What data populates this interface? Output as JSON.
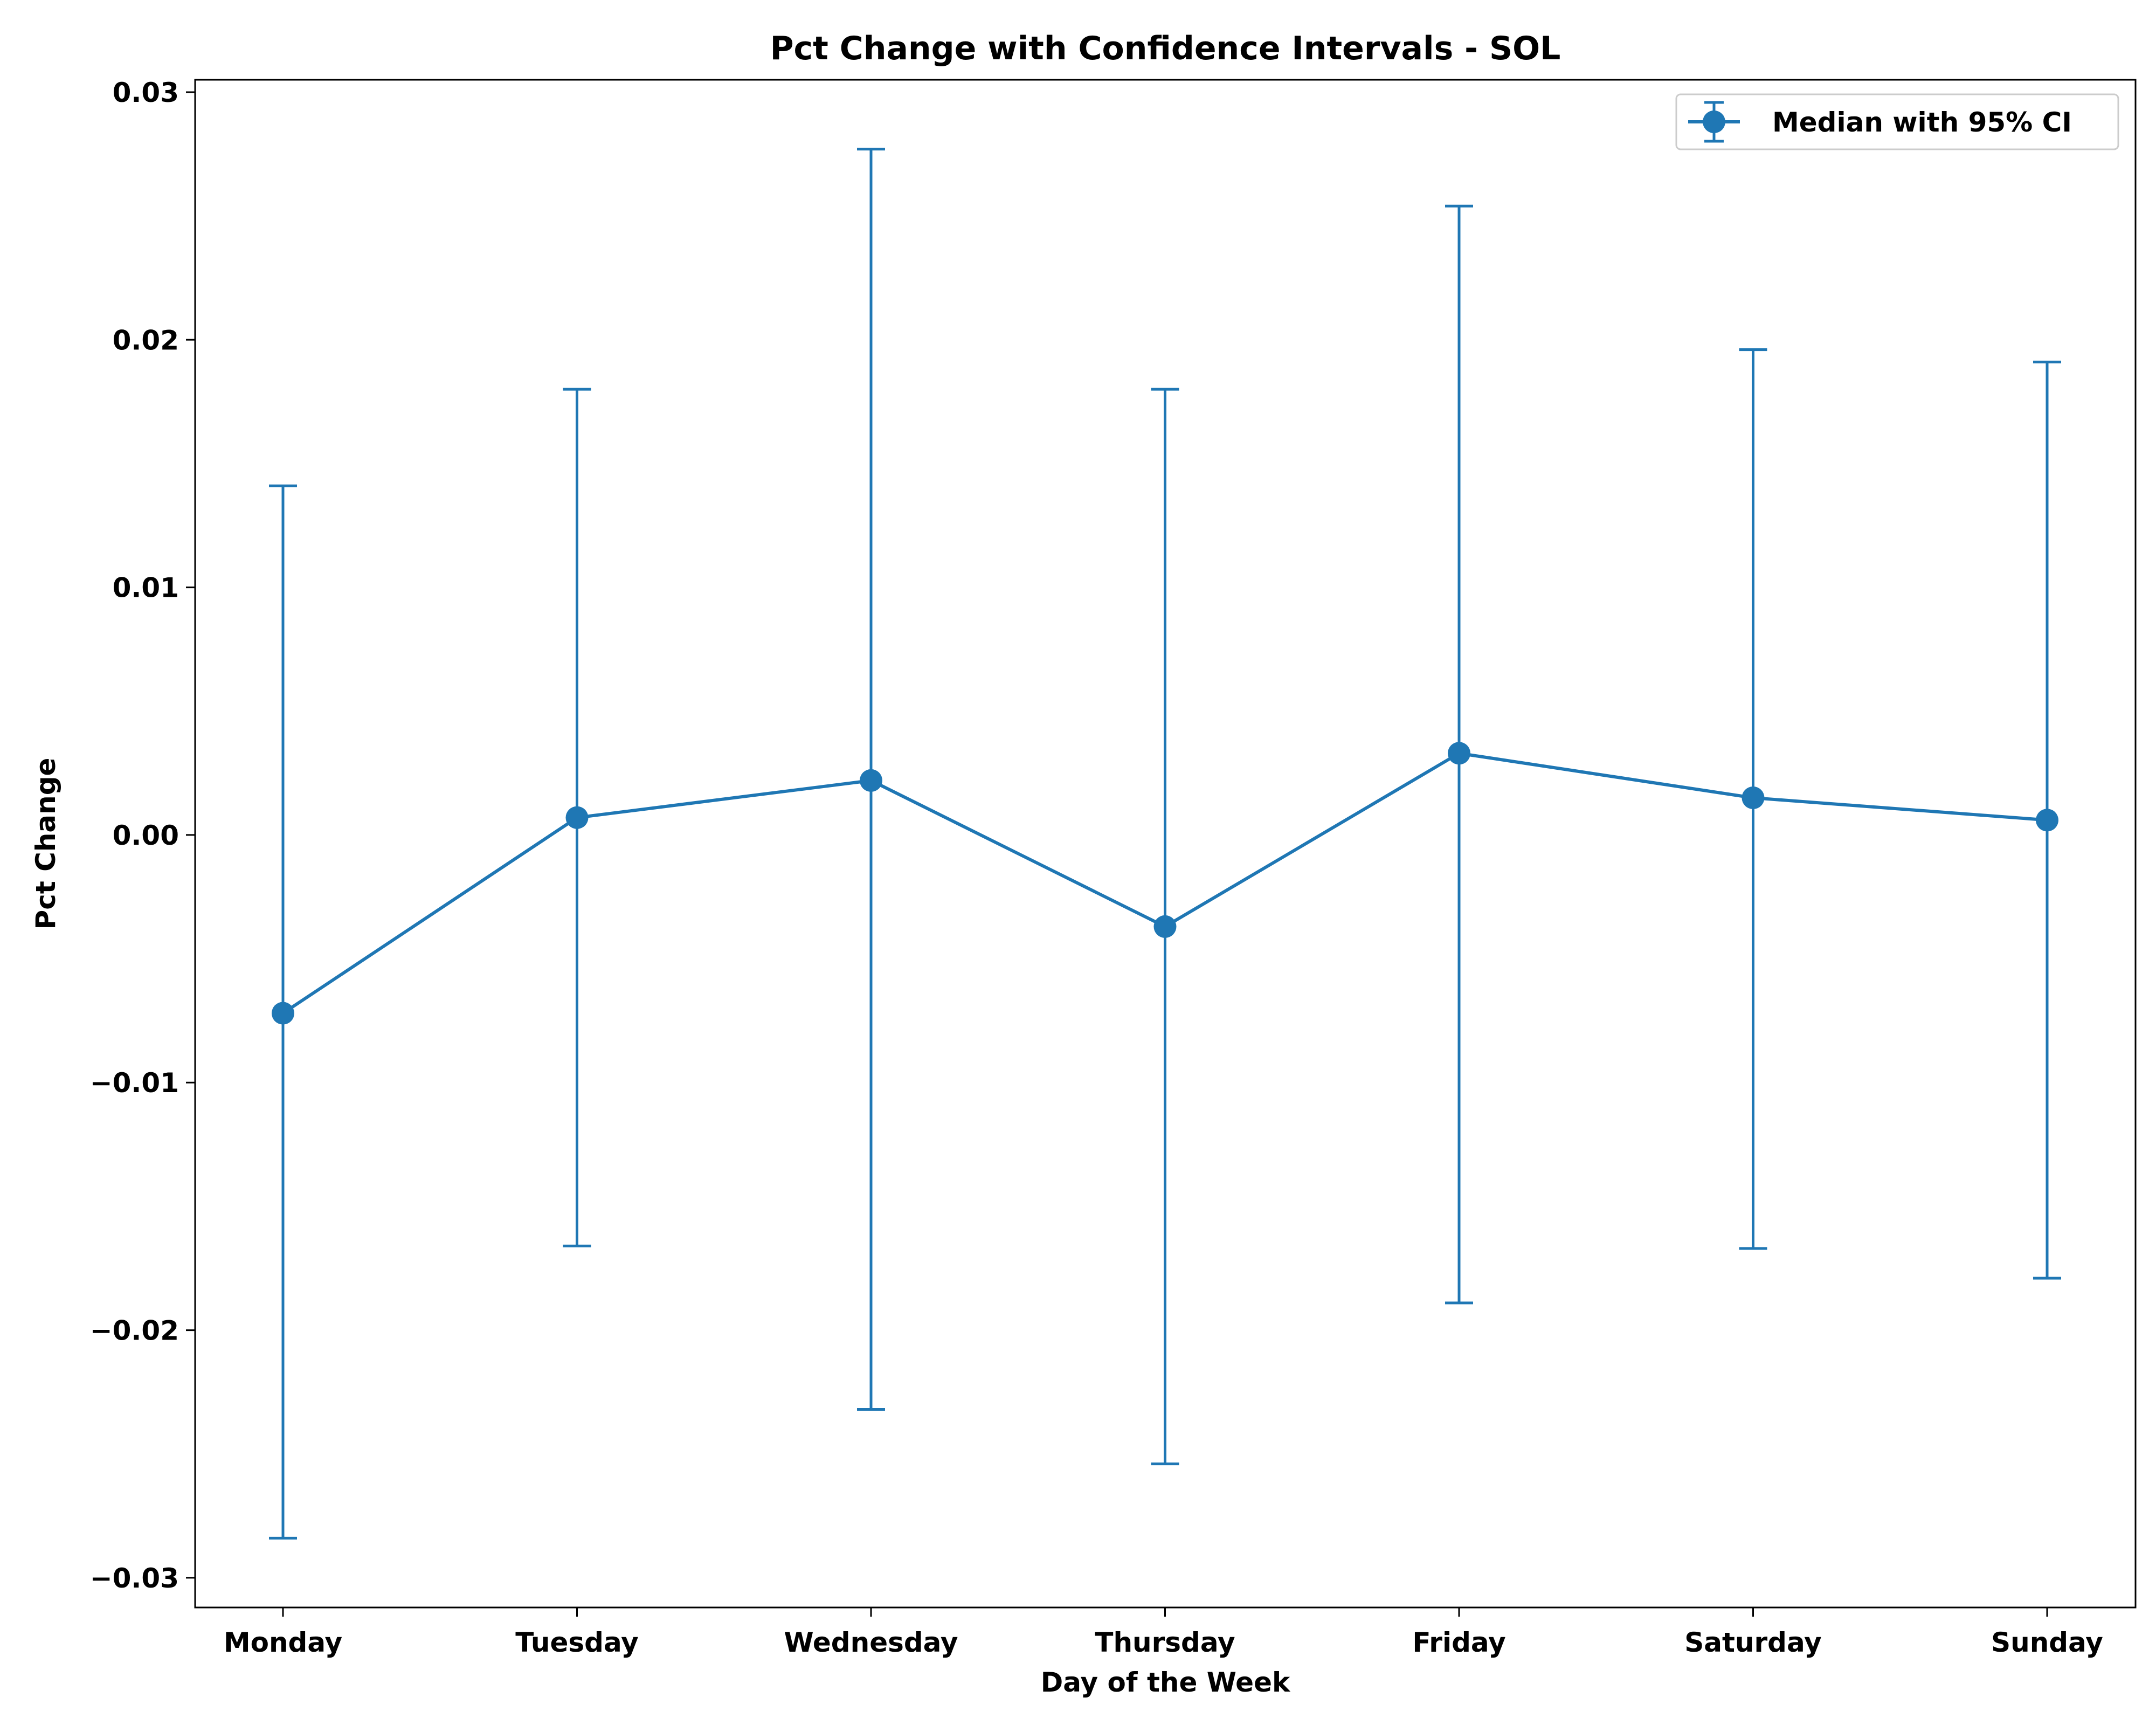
{
  "chart_data": {
    "type": "line",
    "title": "Pct Change with Confidence Intervals - SOL",
    "xlabel": "Day of the Week",
    "ylabel": "Pct Change",
    "categories": [
      "Monday",
      "Tuesday",
      "Wednesday",
      "Thursday",
      "Friday",
      "Saturday",
      "Sunday"
    ],
    "series": [
      {
        "name": "Median with 95% CI",
        "values": [
          -0.0072,
          0.0007,
          0.0022,
          -0.0037,
          0.0033,
          0.0015,
          0.0006
        ],
        "ci_lower": [
          -0.0284,
          -0.0166,
          -0.0232,
          -0.0254,
          -0.0189,
          -0.0167,
          -0.0179
        ],
        "ci_upper": [
          0.0141,
          0.018,
          0.0277,
          0.018,
          0.0254,
          0.0196,
          0.0191
        ]
      }
    ],
    "ylim": [
      -0.0312,
      0.0305
    ],
    "yticks": [
      0.03,
      0.02,
      0.01,
      0.0,
      -0.01,
      -0.02,
      -0.03
    ],
    "ytick_labels": [
      "0.03",
      "0.02",
      "0.01",
      "0.00",
      "−0.01",
      "−0.02",
      "−0.03"
    ],
    "grid": false,
    "legend_position": "top-right",
    "color": "#1f77b4"
  }
}
